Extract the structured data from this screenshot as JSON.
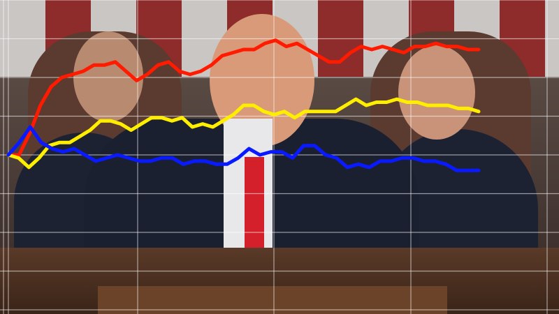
{
  "chart_data": {
    "type": "line",
    "title": "",
    "xlabel": "",
    "ylabel": "",
    "ylim": [
      0,
      100
    ],
    "grid": true,
    "legend": "none",
    "series": [
      {
        "color": "#ff1a00",
        "values": [
          50,
          50,
          57,
          66,
          72,
          75,
          76,
          77,
          79,
          79,
          80,
          77,
          74,
          76,
          79,
          80,
          77,
          76,
          77,
          79,
          82,
          83,
          84,
          84,
          86,
          87,
          85,
          86,
          84,
          82,
          80,
          80,
          83,
          85,
          84,
          85,
          84,
          83,
          85,
          85,
          86,
          85,
          85,
          84,
          84
        ]
      },
      {
        "color": "#ffee00",
        "values": [
          50,
          49,
          46,
          49,
          53,
          54,
          54,
          56,
          58,
          61,
          61,
          60,
          58,
          60,
          62,
          62,
          61,
          62,
          59,
          60,
          59,
          61,
          63,
          66,
          66,
          64,
          63,
          64,
          62,
          64,
          64,
          64,
          64,
          66,
          68,
          66,
          67,
          67,
          68,
          67,
          67,
          66,
          66,
          66,
          65,
          65,
          64
        ]
      },
      {
        "color": "#0a1aff",
        "values": [
          50,
          54,
          59,
          54,
          52,
          51,
          52,
          50,
          48,
          49,
          50,
          49,
          48,
          48,
          49,
          49,
          47,
          48,
          48,
          47,
          47,
          49,
          52,
          50,
          51,
          51,
          49,
          53,
          53,
          50,
          49,
          46,
          47,
          46,
          48,
          48,
          49,
          49,
          48,
          48,
          47,
          45,
          45,
          45
        ]
      }
    ]
  },
  "background": {
    "scene": "photo",
    "colors": {
      "flag_red": "#8e2b2b",
      "flag_white": "#c9c6c4"
    }
  }
}
